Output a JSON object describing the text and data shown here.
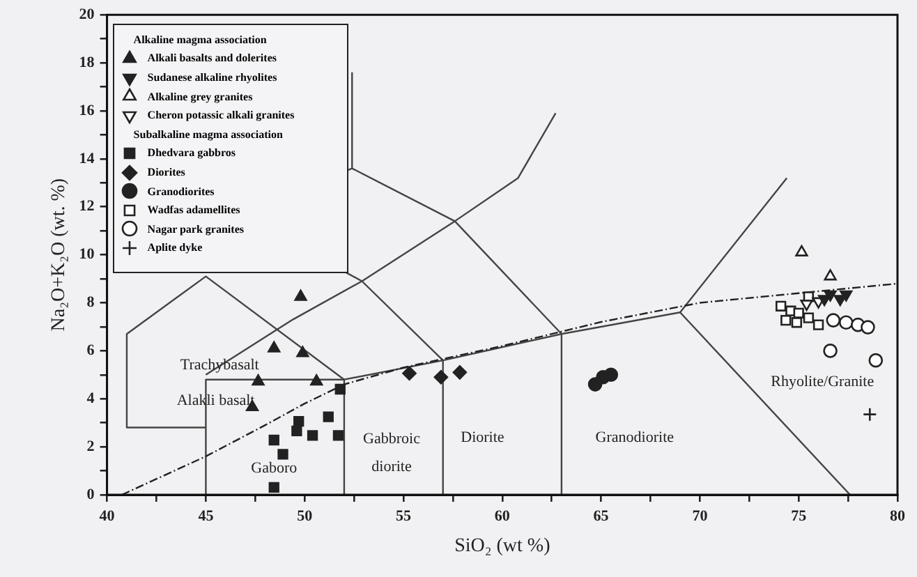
{
  "chart_data": {
    "type": "scatter",
    "xlabel": "SiO₂ (wt %)",
    "ylabel": "Na₂O+K₂O (wt. %)",
    "xlim": [
      40,
      80
    ],
    "xticks": [
      40,
      {
        "value": 42.5,
        "label": null
      },
      45,
      {
        "value": 47.5,
        "label": null
      },
      50,
      {
        "value": 52.5,
        "label": null
      },
      55,
      {
        "value": 57.5,
        "label": null
      },
      60,
      {
        "value": 62.5,
        "label": null
      },
      65,
      {
        "value": 67.5,
        "label": null
      },
      70,
      {
        "value": 72.5,
        "label": null
      },
      75,
      {
        "value": 77.5,
        "label": null
      },
      80
    ],
    "ylim": [
      0,
      20
    ],
    "yticks": [
      0,
      {
        "value": 1,
        "label": null
      },
      2,
      {
        "value": 3,
        "label": null
      },
      4,
      {
        "value": 5,
        "label": null
      },
      6,
      {
        "value": 7,
        "label": null
      },
      8,
      {
        "value": 9,
        "label": null
      },
      10,
      {
        "value": 11,
        "label": null
      },
      12,
      {
        "value": 13,
        "label": null
      },
      14,
      {
        "value": 15,
        "label": null
      },
      16,
      {
        "value": 17,
        "label": null
      },
      18,
      {
        "value": 19,
        "label": null
      },
      20
    ],
    "grid": false,
    "legend": "top left",
    "annotations": [
      "Trachybasalt",
      "Alakli basalt",
      "Gaboro",
      "Gabbroic diorite",
      "Diorite",
      "Granodiorite",
      "Rhyolite/Granite"
    ],
    "series": [
      {
        "name": "Alkaline magma association",
        "marker": "none"
      },
      {
        "name": "Alkali basalts and dolerites",
        "marker": "triangle",
        "color": "#222222",
        "x": [
          49.8,
          48.45,
          49.9,
          47.65,
          50.6,
          47.35
        ],
        "values": [
          8.25,
          6.1,
          5.9,
          4.72,
          4.72,
          3.65
        ]
      },
      {
        "name": "Sudanese alkaline rhyolites",
        "marker": "triangle-down",
        "color": "#222222",
        "x": [
          76.6,
          77.1,
          77.4,
          76.3
        ],
        "values": [
          8.35,
          8.16,
          8.35,
          8.16
        ]
      },
      {
        "name": "Alkaline grey granites",
        "marker": "triangle",
        "color": "#ffffff",
        "x": [
          75.15,
          76.6
        ],
        "values": [
          10.1,
          9.1
        ]
      },
      {
        "name": "Cheron potassic alkali granites",
        "marker": "triangle-down",
        "color": "#ffffff",
        "x": [
          76.0,
          75.4
        ],
        "values": [
          8.06,
          7.96
        ]
      },
      {
        "name": "Subalkaline magma association",
        "marker": "none"
      },
      {
        "name": "Dhedvara gabbros",
        "marker": "square",
        "color": "#222222",
        "x": [
          51.8,
          49.7,
          49.6,
          50.4,
          51.2,
          51.7,
          48.45,
          48.9,
          48.45
        ],
        "values": [
          4.4,
          3.06,
          2.66,
          2.47,
          3.25,
          2.47,
          2.28,
          1.69,
          0.31
        ]
      },
      {
        "name": "Diorites",
        "marker": "diamond",
        "color": "#222222",
        "x": [
          55.3,
          56.9,
          57.85
        ],
        "values": [
          5.06,
          4.9,
          5.1
        ]
      },
      {
        "name": "Granodiorites",
        "marker": "circle",
        "color": "#222222",
        "x": [
          64.7,
          65.1,
          65.5
        ],
        "values": [
          4.6,
          4.9,
          5.0
        ]
      },
      {
        "name": "Wadfas adamellites",
        "marker": "square",
        "color": "#ffffff",
        "x": [
          74.1,
          74.6,
          74.35,
          75.0,
          75.5,
          76.0,
          74.9,
          75.5
        ],
        "values": [
          7.86,
          7.66,
          7.27,
          7.57,
          7.37,
          7.08,
          7.18,
          8.25
        ]
      },
      {
        "name": "Nagar park granites",
        "marker": "circle",
        "color": "#ffffff",
        "x": [
          76.75,
          77.4,
          78.0,
          78.5,
          76.6,
          78.9
        ],
        "values": [
          7.27,
          7.18,
          7.08,
          6.98,
          6.0,
          5.6
        ]
      },
      {
        "name": "Aplite dyke",
        "marker": "cross",
        "color": "#222222",
        "x": [
          78.6
        ],
        "values": [
          3.35
        ]
      },
      {
        "type": "line",
        "marker": "none",
        "line_style": "dashed",
        "color": "#222222",
        "x": [
          40.75,
          45,
          48,
          50,
          52,
          55,
          60,
          65,
          70,
          75,
          80
        ],
        "values": [
          0,
          1.6,
          2.9,
          3.8,
          4.6,
          5.3,
          6.2,
          7.2,
          8.0,
          8.4,
          8.8
        ]
      },
      {
        "type": "line",
        "marker": "none",
        "color": "#444444",
        "x": [
          45,
          45,
          52,
          52
        ],
        "values": [
          0,
          4.8,
          4.8,
          0
        ]
      },
      {
        "type": "line",
        "marker": "none",
        "color": "#444444",
        "x": [
          45,
          41,
          41,
          45,
          52
        ],
        "values": [
          2.8,
          2.8,
          6.7,
          9.1,
          4.8
        ]
      },
      {
        "type": "line",
        "marker": "none",
        "color": "#444444",
        "x": [
          52,
          57,
          63,
          69,
          77.6
        ],
        "values": [
          4.8,
          5.6,
          6.7,
          7.6,
          0
        ]
      },
      {
        "type": "line",
        "marker": "none",
        "color": "#444444",
        "x": [
          57,
          57
        ],
        "values": [
          0,
          5.6
        ]
      },
      {
        "type": "line",
        "marker": "none",
        "color": "#444444",
        "x": [
          63,
          63
        ],
        "values": [
          0,
          6.7
        ]
      },
      {
        "type": "line",
        "marker": "none",
        "color": "#444444",
        "x": [
          69,
          74.4
        ],
        "values": [
          7.6,
          13.2
        ]
      },
      {
        "type": "line",
        "marker": "none",
        "color": "#444444",
        "x": [
          45,
          49.4,
          52.9,
          57.6,
          60.8,
          62.7
        ],
        "values": [
          5,
          7.3,
          8.9,
          11.4,
          13.2,
          15.9
        ]
      },
      {
        "type": "line",
        "marker": "none",
        "color": "#444444",
        "x": [
          57,
          52.9,
          52.1
        ],
        "values": [
          5.6,
          8.9,
          9.26
        ]
      },
      {
        "type": "line",
        "marker": "none",
        "color": "#444444",
        "x": [
          52.1,
          52.4,
          57.6,
          63
        ],
        "values": [
          13.5,
          13.6,
          11.4,
          6.7
        ]
      },
      {
        "type": "line",
        "marker": "none",
        "color": "#444444",
        "x": [
          52.4,
          52.4
        ],
        "values": [
          13.6,
          17.6
        ]
      }
    ]
  }
}
